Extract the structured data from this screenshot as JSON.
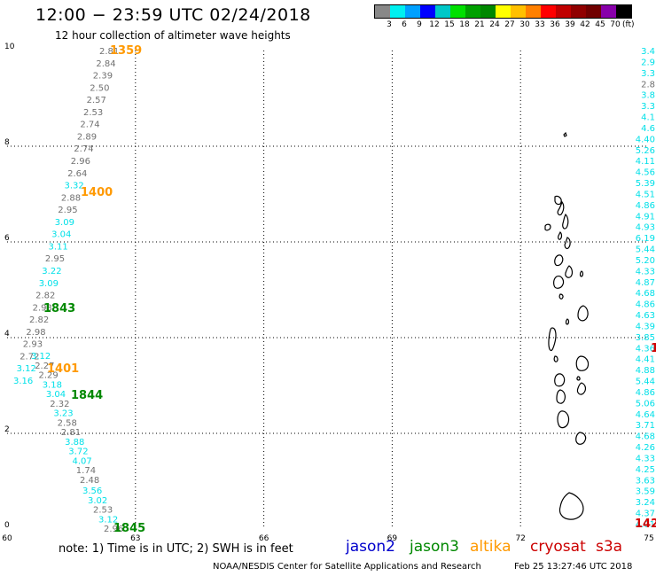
{
  "header": {
    "title": "12:00 − 23:59 UTC 02/24/2018",
    "subtitle": "12 hour collection of altimeter wave heights"
  },
  "legend": {
    "colors": [
      "#888888",
      "#00f0f0",
      "#00a0ff",
      "#0000ff",
      "#00c8c8",
      "#00e000",
      "#00a000",
      "#008800",
      "#ffff00",
      "#ffc000",
      "#ff8000",
      "#ff0000",
      "#c00000",
      "#900000",
      "#700000",
      "#8800aa",
      "#000000"
    ],
    "ticks": [
      "3",
      "6",
      "9",
      "12",
      "15",
      "18",
      "21",
      "24",
      "27",
      "30",
      "33",
      "36",
      "39",
      "42",
      "45",
      "70"
    ],
    "unit": "(ft)"
  },
  "map": {
    "x_ticks": [
      "60",
      "63",
      "66",
      "69",
      "72",
      "75"
    ],
    "y_ticks": [
      "0",
      "2",
      "4",
      "6",
      "8",
      "10"
    ],
    "xlim": [
      60,
      75
    ],
    "ylim": [
      0,
      10
    ]
  },
  "tracks": [
    {
      "colors": {
        "gray": "#707070",
        "cyan": "#00e0e8"
      },
      "points": [
        {
          "lon": 61.7,
          "lat": 9.9,
          "v": "2.81",
          "c": "gray"
        },
        {
          "lon": 61.65,
          "lat": 9.64,
          "v": "2.84",
          "c": "gray"
        },
        {
          "lon": 61.6,
          "lat": 9.38,
          "v": "2.39",
          "c": "gray"
        },
        {
          "lon": 61.55,
          "lat": 9.12,
          "v": "2.50",
          "c": "gray"
        },
        {
          "lon": 61.5,
          "lat": 8.86,
          "v": "2.57",
          "c": "gray"
        },
        {
          "lon": 61.45,
          "lat": 8.6,
          "v": "2.53",
          "c": "gray"
        },
        {
          "lon": 61.4,
          "lat": 8.34,
          "v": "2.74",
          "c": "gray"
        },
        {
          "lon": 61.35,
          "lat": 8.08,
          "v": "2.89",
          "c": "gray"
        },
        {
          "lon": 61.3,
          "lat": 7.82,
          "v": "2.74",
          "c": "gray"
        },
        {
          "lon": 61.25,
          "lat": 7.56,
          "v": "2.96",
          "c": "gray"
        },
        {
          "lon": 61.2,
          "lat": 7.3,
          "v": "2.64",
          "c": "gray"
        },
        {
          "lon": 61.15,
          "lat": 7.04,
          "v": "3.32",
          "c": "cyan"
        },
        {
          "lon": 61.1,
          "lat": 6.78,
          "v": "2.88",
          "c": "gray"
        },
        {
          "lon": 61.05,
          "lat": 6.52,
          "v": "2.95",
          "c": "gray"
        },
        {
          "lon": 61.0,
          "lat": 6.26,
          "v": "3.09",
          "c": "cyan"
        },
        {
          "lon": 60.95,
          "lat": 6.0,
          "v": "3.04",
          "c": "cyan"
        },
        {
          "lon": 60.9,
          "lat": 5.74,
          "v": "3.11",
          "c": "cyan"
        },
        {
          "lon": 60.85,
          "lat": 5.48,
          "v": "2.95",
          "c": "gray"
        },
        {
          "lon": 60.8,
          "lat": 5.22,
          "v": "3.22",
          "c": "cyan"
        },
        {
          "lon": 60.75,
          "lat": 4.96,
          "v": "3.09",
          "c": "cyan"
        },
        {
          "lon": 60.7,
          "lat": 4.7,
          "v": "2.82",
          "c": "gray"
        },
        {
          "lon": 60.65,
          "lat": 4.44,
          "v": "2.93",
          "c": "gray"
        },
        {
          "lon": 60.6,
          "lat": 4.18,
          "v": "2.82",
          "c": "gray"
        },
        {
          "lon": 60.55,
          "lat": 3.92,
          "v": "2.98",
          "c": "gray"
        },
        {
          "lon": 60.5,
          "lat": 3.66,
          "v": "2.93",
          "c": "gray"
        },
        {
          "lon": 60.45,
          "lat": 3.4,
          "v": "2.72",
          "c": "gray"
        },
        {
          "lon": 60.4,
          "lat": 3.14,
          "v": "3.12",
          "c": "cyan"
        },
        {
          "lon": 60.35,
          "lat": 2.88,
          "v": "3.16",
          "c": "cyan"
        }
      ]
    },
    {
      "colors": {
        "gray": "#707070",
        "cyan": "#00e0e8"
      },
      "points": [
        {
          "lon": 60.65,
          "lat": 3.4,
          "v": "3.12",
          "c": "cyan"
        },
        {
          "lon": 60.75,
          "lat": 3.14,
          "v": "2.27",
          "c": "gray"
        },
        {
          "lon": 60.85,
          "lat": 2.88,
          "v": "2.29",
          "c": "gray"
        },
        {
          "lon": 60.95,
          "lat": 2.62,
          "v": "3.18",
          "c": "cyan"
        },
        {
          "lon": 61.05,
          "lat": 2.36,
          "v": "3.04",
          "c": "cyan"
        },
        {
          "lon": 61.15,
          "lat": 2.1,
          "v": "2.32",
          "c": "gray"
        },
        {
          "lon": 61.25,
          "lat": 1.84,
          "v": "3.23",
          "c": "cyan"
        },
        {
          "lon": 61.35,
          "lat": 1.58,
          "v": "2.58",
          "c": "gray"
        },
        {
          "lon": 61.45,
          "lat": 1.32,
          "v": "2.81",
          "c": "gray"
        },
        {
          "lon": 61.55,
          "lat": 1.06,
          "v": "3.88",
          "c": "cyan"
        },
        {
          "lon": 61.65,
          "lat": 0.8,
          "v": "3.72",
          "c": "cyan"
        },
        {
          "lon": 61.75,
          "lat": 0.54,
          "v": "4.07",
          "c": "cyan"
        },
        {
          "lon": 61.85,
          "lat": 0.28,
          "v": "1.74",
          "c": "gray"
        },
        {
          "lon": 61.95,
          "lat": 0.02,
          "v": "2.48",
          "c": "gray"
        }
      ]
    },
    {
      "colors": {
        "gray": "#707070",
        "cyan": "#00e0e8"
      },
      "points": [
        {
          "lon": 62.05,
          "lat": -0.24,
          "v": "3.56",
          "c": "cyan"
        },
        {
          "lon": 62.15,
          "lat": -0.5,
          "v": "3.02",
          "c": "cyan"
        },
        {
          "lon": 62.25,
          "lat": -0.76,
          "v": "2.53",
          "c": "gray"
        },
        {
          "lon": 62.35,
          "lat": -1.02,
          "v": "3.12",
          "c": "cyan"
        },
        {
          "lon": 62.45,
          "lat": -1.28,
          "v": "2.96",
          "c": "gray"
        }
      ]
    },
    {
      "colors": {
        "gray": "#707070",
        "cyan": "#00e0e8"
      },
      "points": [
        {
          "lon": 74.95,
          "lat": 9.9,
          "v": "3.4",
          "c": "cyan"
        },
        {
          "lon": 74.95,
          "lat": 9.64,
          "v": "2.9",
          "c": "cyan"
        },
        {
          "lon": 74.95,
          "lat": 9.38,
          "v": "3.3",
          "c": "cyan"
        },
        {
          "lon": 74.95,
          "lat": 9.12,
          "v": "2.8",
          "c": "gray"
        },
        {
          "lon": 74.95,
          "lat": 8.86,
          "v": "3.8",
          "c": "cyan"
        },
        {
          "lon": 74.95,
          "lat": 8.6,
          "v": "3.3",
          "c": "cyan"
        },
        {
          "lon": 74.95,
          "lat": 8.34,
          "v": "4.1",
          "c": "cyan"
        },
        {
          "lon": 74.95,
          "lat": 8.08,
          "v": "4.6",
          "c": "cyan"
        },
        {
          "lon": 74.95,
          "lat": 7.82,
          "v": "4.40",
          "c": "cyan"
        },
        {
          "lon": 74.95,
          "lat": 7.56,
          "v": "5.26",
          "c": "cyan"
        },
        {
          "lon": 74.95,
          "lat": 7.3,
          "v": "4.11",
          "c": "cyan"
        },
        {
          "lon": 74.95,
          "lat": 7.04,
          "v": "4.56",
          "c": "cyan"
        },
        {
          "lon": 74.95,
          "lat": 6.78,
          "v": "5.39",
          "c": "cyan"
        },
        {
          "lon": 74.95,
          "lat": 6.52,
          "v": "4.51",
          "c": "cyan"
        },
        {
          "lon": 74.95,
          "lat": 6.26,
          "v": "4.86",
          "c": "cyan"
        },
        {
          "lon": 74.95,
          "lat": 6.0,
          "v": "4.91",
          "c": "cyan"
        },
        {
          "lon": 74.95,
          "lat": 5.74,
          "v": "4.93",
          "c": "cyan"
        },
        {
          "lon": 74.95,
          "lat": 5.48,
          "v": "6.19",
          "c": "cyan"
        },
        {
          "lon": 74.95,
          "lat": 5.22,
          "v": "5.44",
          "c": "cyan"
        },
        {
          "lon": 74.95,
          "lat": 4.96,
          "v": "5.20",
          "c": "cyan"
        },
        {
          "lon": 74.95,
          "lat": 4.7,
          "v": "4.33",
          "c": "cyan"
        },
        {
          "lon": 74.95,
          "lat": 4.44,
          "v": "4.87",
          "c": "cyan"
        },
        {
          "lon": 74.95,
          "lat": 4.18,
          "v": "4.68",
          "c": "cyan"
        },
        {
          "lon": 74.95,
          "lat": 3.92,
          "v": "4.86",
          "c": "cyan"
        },
        {
          "lon": 74.95,
          "lat": 3.66,
          "v": "4.63",
          "c": "cyan"
        },
        {
          "lon": 74.95,
          "lat": 3.4,
          "v": "4.39",
          "c": "cyan"
        },
        {
          "lon": 74.95,
          "lat": 3.14,
          "v": "3.85",
          "c": "cyan"
        },
        {
          "lon": 74.95,
          "lat": 2.88,
          "v": "4.36",
          "c": "cyan"
        },
        {
          "lon": 74.95,
          "lat": 2.62,
          "v": "4.41",
          "c": "cyan"
        },
        {
          "lon": 74.95,
          "lat": 2.36,
          "v": "4.88",
          "c": "cyan"
        },
        {
          "lon": 74.95,
          "lat": 2.1,
          "v": "5.44",
          "c": "cyan"
        },
        {
          "lon": 74.95,
          "lat": 1.84,
          "v": "4.86",
          "c": "cyan"
        },
        {
          "lon": 74.95,
          "lat": 1.58,
          "v": "5.06",
          "c": "cyan"
        },
        {
          "lon": 74.95,
          "lat": 1.32,
          "v": "4.64",
          "c": "cyan"
        },
        {
          "lon": 74.95,
          "lat": 1.06,
          "v": "3.71",
          "c": "cyan"
        },
        {
          "lon": 74.95,
          "lat": 0.8,
          "v": "4.68",
          "c": "cyan"
        },
        {
          "lon": 74.95,
          "lat": 0.54,
          "v": "4.26",
          "c": "cyan"
        },
        {
          "lon": 74.95,
          "lat": 0.28,
          "v": "4.33",
          "c": "cyan"
        },
        {
          "lon": 74.95,
          "lat": 0.02,
          "v": "4.25",
          "c": "cyan"
        },
        {
          "lon": 74.95,
          "lat": -0.24,
          "v": "3.63",
          "c": "cyan"
        },
        {
          "lon": 74.95,
          "lat": -0.5,
          "v": "3.59",
          "c": "cyan"
        },
        {
          "lon": 74.95,
          "lat": -0.76,
          "v": "3.24",
          "c": "cyan"
        },
        {
          "lon": 74.95,
          "lat": -1.02,
          "v": "4.37",
          "c": "cyan"
        },
        {
          "lon": 74.95,
          "lat": -1.28,
          "v": "4.01",
          "c": "cyan"
        }
      ]
    }
  ],
  "time_labels": [
    {
      "lon": 62.3,
      "lat": 9.9,
      "text": "1359",
      "color": "#ff9900"
    },
    {
      "lon": 61.8,
      "lat": 6.78,
      "text": "1400",
      "color": "#ff9900"
    },
    {
      "lon": 60.9,
      "lat": 4.88,
      "text": "1843",
      "color": "#008800"
    },
    {
      "lon": 60.9,
      "lat": 3.36,
      "text": "1401",
      "color": "#ff9900"
    },
    {
      "lon": 61.6,
      "lat": 2.88,
      "text": "1844",
      "color": "#008800"
    },
    {
      "lon": 62.4,
      "lat": -1.28,
      "text": "1845",
      "color": "#008800"
    },
    {
      "lon": 75.4,
      "lat": 3.92,
      "text": "1",
      "color": "#d00000"
    },
    {
      "lon": 74.7,
      "lat": -1.02,
      "text": "142",
      "color": "#d00000"
    }
  ],
  "footer": {
    "note": "note: 1) Time is in UTC; 2) SWH is in feet",
    "satellites": [
      {
        "name": "jason2",
        "color": "#0000cc"
      },
      {
        "name": "jason3",
        "color": "#008800"
      },
      {
        "name": "altika",
        "color": "#ff9900"
      },
      {
        "name": "cryosat",
        "color": "#cc0000"
      },
      {
        "name": "s3a",
        "color": "#cc0000"
      }
    ],
    "credit": "NOAA/NESDIS Center for Satellite Applications and Research",
    "timestamp": "Feb 25 13:27:46 UTC 2018"
  }
}
